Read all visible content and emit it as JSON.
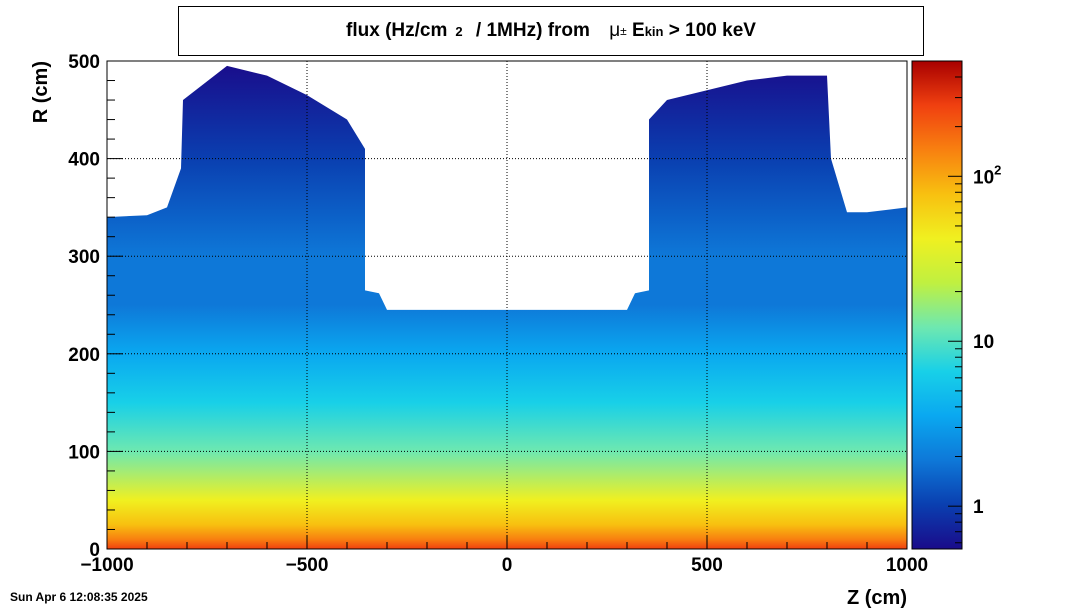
{
  "chart_data": {
    "type": "heatmap",
    "title_parts": {
      "pre": "flux (Hz/cm",
      "sup": "2",
      "mid": " / 1MHz) from ",
      "particle": "μ",
      "particle_sup": "±",
      "e": " E",
      "e_sub": "kin",
      "post": " > 100 keV"
    },
    "xlabel": "Z (cm)",
    "ylabel": "R (cm)",
    "xlim": [
      -1000,
      1000
    ],
    "ylim": [
      0,
      500
    ],
    "x_ticks": [
      {
        "value": -1000,
        "label": "−1000"
      },
      {
        "value": -500,
        "label": "−500"
      },
      {
        "value": 0,
        "label": "0"
      },
      {
        "value": 500,
        "label": "500"
      },
      {
        "value": 1000,
        "label": "1000"
      }
    ],
    "y_ticks": [
      {
        "value": 0,
        "label": "0"
      },
      {
        "value": 100,
        "label": "100"
      },
      {
        "value": 200,
        "label": "200"
      },
      {
        "value": 300,
        "label": "300"
      },
      {
        "value": 400,
        "label": "400"
      },
      {
        "value": 500,
        "label": "500"
      }
    ],
    "grid": true,
    "zscale": "log",
    "zlim": [
      0.55,
      500
    ],
    "colorbar_ticks": [
      {
        "value": 1,
        "label": "1"
      },
      {
        "value": 10,
        "label": "10"
      },
      {
        "value": 100,
        "label": "10",
        "sup": "2"
      }
    ],
    "palette": [
      "#1a0b8a",
      "#0a3fb0",
      "#0e78d8",
      "#0aa8f0",
      "#18d0e8",
      "#6ee8b0",
      "#c0f040",
      "#f0f020",
      "#f8c010",
      "#f88010",
      "#f04010",
      "#a80000"
    ],
    "coverage_outline_R_vs_Z": [
      {
        "z": -1000,
        "r": 340
      },
      {
        "z": -900,
        "r": 342
      },
      {
        "z": -850,
        "r": 350
      },
      {
        "z": -815,
        "r": 390
      },
      {
        "z": -810,
        "r": 460
      },
      {
        "z": -700,
        "r": 495
      },
      {
        "z": -600,
        "r": 485
      },
      {
        "z": -500,
        "r": 465
      },
      {
        "z": -400,
        "r": 440
      },
      {
        "z": -355,
        "r": 410
      },
      {
        "z": -355,
        "r": 265
      },
      {
        "z": -320,
        "r": 262
      },
      {
        "z": -300,
        "r": 245
      },
      {
        "z": 0,
        "r": 245
      },
      {
        "z": 300,
        "r": 245
      },
      {
        "z": 320,
        "r": 262
      },
      {
        "z": 355,
        "r": 265
      },
      {
        "z": 355,
        "r": 440
      },
      {
        "z": 400,
        "r": 460
      },
      {
        "z": 500,
        "r": 470
      },
      {
        "z": 600,
        "r": 480
      },
      {
        "z": 700,
        "r": 485
      },
      {
        "z": 800,
        "r": 485
      },
      {
        "z": 810,
        "r": 400
      },
      {
        "z": 850,
        "r": 345
      },
      {
        "z": 900,
        "r": 345
      },
      {
        "z": 1000,
        "r": 350
      }
    ],
    "flux_profile": [
      {
        "r": 0,
        "flux": 250
      },
      {
        "r": 10,
        "flux": 120
      },
      {
        "r": 25,
        "flux": 60
      },
      {
        "r": 50,
        "flux": 35
      },
      {
        "r": 100,
        "flux": 15
      },
      {
        "r": 150,
        "flux": 8
      },
      {
        "r": 200,
        "flux": 4
      },
      {
        "r": 250,
        "flux": 2.5
      },
      {
        "r": 300,
        "flux": 1.5
      },
      {
        "r": 400,
        "flux": 0.9
      },
      {
        "r": 500,
        "flux": 0.7
      }
    ]
  },
  "footer": {
    "timestamp": "Sun Apr  6 12:08:35 2025"
  },
  "colors": {
    "frame": "#000000",
    "grid": "#000000",
    "empty": "#ffffff"
  }
}
